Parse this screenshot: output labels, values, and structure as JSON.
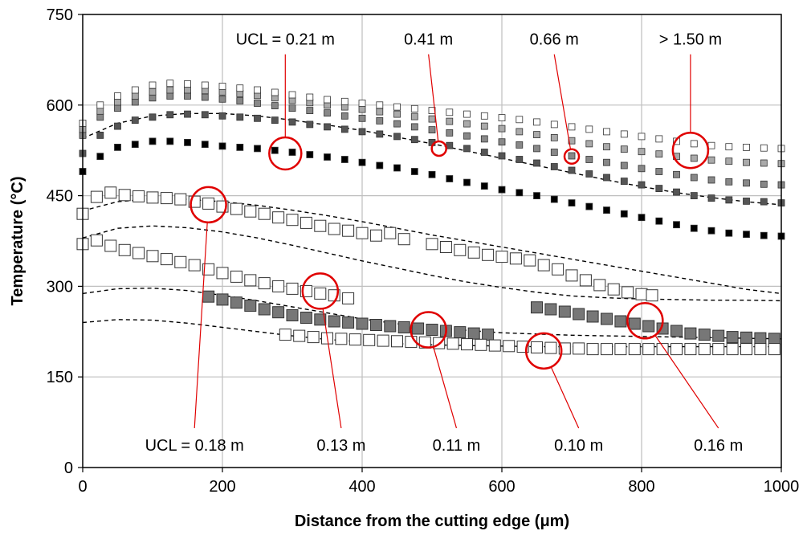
{
  "chart_data": {
    "type": "scatter",
    "title": "",
    "xlabel": "Distance from the cutting edge (μm)",
    "ylabel": "Temperature (°C)",
    "xlim": [
      0,
      1000
    ],
    "ylim": [
      0,
      750
    ],
    "xticks": [
      "0",
      "200",
      "400",
      "600",
      "800",
      "1000"
    ],
    "xtick_values": [
      0,
      200,
      400,
      600,
      800,
      1000
    ],
    "yticks": [
      "0",
      "150",
      "300",
      "450",
      "600",
      "750"
    ],
    "ytick_values": [
      0,
      150,
      300,
      450,
      600,
      750
    ],
    "grid": true,
    "colors": {
      "small_black": "#000000",
      "small_dark_grey": "#555555",
      "small_mid_grey": "#888888",
      "small_light_grey": "#aaaaaa",
      "small_white": "#ffffff",
      "large_white": "#ffffff",
      "large_dark_grey": "#777777",
      "marker_edge": "#333333",
      "annotation": "#e00000",
      "dashed": "#000000",
      "grid": "#bfbfbf"
    },
    "series": [
      {
        "key": "small_black",
        "marker": "small-square",
        "x": [
          0,
          25,
          50,
          75,
          100,
          125,
          150,
          175,
          200,
          225,
          250,
          275,
          300,
          325,
          350,
          375,
          400,
          425,
          450,
          475,
          500,
          525,
          550,
          575,
          600,
          625,
          650,
          675,
          700,
          725,
          750,
          775,
          800,
          825,
          850,
          875,
          900,
          925,
          950,
          975,
          1000
        ],
        "y": [
          490,
          515,
          530,
          535,
          540,
          540,
          538,
          535,
          532,
          530,
          528,
          525,
          522,
          518,
          514,
          510,
          505,
          500,
          496,
          490,
          485,
          478,
          472,
          466,
          460,
          455,
          450,
          444,
          438,
          432,
          426,
          420,
          414,
          408,
          402,
          396,
          392,
          388,
          386,
          384,
          383
        ]
      },
      {
        "key": "small_dark_grey",
        "marker": "small-square",
        "x": [
          0,
          25,
          50,
          75,
          100,
          125,
          150,
          175,
          200,
          225,
          250,
          275,
          300,
          325,
          350,
          375,
          400,
          425,
          450,
          475,
          500,
          525,
          550,
          575,
          600,
          625,
          650,
          675,
          700,
          725,
          750,
          775,
          800,
          825,
          850,
          875,
          900,
          925,
          950,
          975,
          1000
        ],
        "y": [
          520,
          550,
          565,
          575,
          580,
          584,
          585,
          584,
          582,
          580,
          578,
          575,
          572,
          568,
          564,
          560,
          556,
          552,
          548,
          543,
          538,
          533,
          528,
          522,
          516,
          510,
          504,
          498,
          492,
          486,
          480,
          474,
          468,
          462,
          456,
          450,
          446,
          443,
          441,
          440,
          438
        ]
      },
      {
        "key": "small_mid_grey",
        "marker": "small-square",
        "x": [
          0,
          25,
          50,
          75,
          100,
          125,
          150,
          175,
          200,
          225,
          250,
          275,
          300,
          325,
          350,
          375,
          400,
          425,
          450,
          475,
          500,
          525,
          550,
          575,
          600,
          625,
          650,
          675,
          700,
          725,
          750,
          775,
          800,
          825,
          850,
          875,
          900,
          925,
          950,
          975,
          1000
        ],
        "y": [
          550,
          580,
          595,
          605,
          612,
          615,
          615,
          613,
          610,
          607,
          603,
          599,
          595,
          591,
          587,
          582,
          578,
          574,
          569,
          564,
          559,
          554,
          549,
          544,
          539,
          534,
          528,
          522,
          516,
          510,
          505,
          500,
          495,
          490,
          485,
          480,
          476,
          473,
          471,
          469,
          468
        ]
      },
      {
        "key": "small_light_grey",
        "marker": "small-square",
        "x": [
          0,
          25,
          50,
          75,
          100,
          125,
          150,
          175,
          200,
          225,
          250,
          275,
          300,
          325,
          350,
          375,
          400,
          425,
          450,
          475,
          500,
          525,
          550,
          575,
          600,
          625,
          650,
          675,
          700,
          725,
          750,
          775,
          800,
          825,
          850,
          875,
          900,
          925,
          950,
          975,
          1000
        ],
        "y": [
          560,
          590,
          605,
          615,
          622,
          625,
          625,
          624,
          622,
          619,
          616,
          612,
          608,
          604,
          600,
          597,
          593,
          589,
          585,
          581,
          577,
          573,
          569,
          565,
          561,
          556,
          551,
          546,
          541,
          536,
          531,
          527,
          523,
          519,
          515,
          512,
          509,
          507,
          505,
          504,
          503
        ]
      },
      {
        "key": "small_white",
        "marker": "small-square",
        "x": [
          0,
          25,
          50,
          75,
          100,
          125,
          150,
          175,
          200,
          225,
          250,
          275,
          300,
          325,
          350,
          375,
          400,
          425,
          450,
          475,
          500,
          525,
          550,
          575,
          600,
          625,
          650,
          675,
          700,
          725,
          750,
          775,
          800,
          825,
          850,
          875,
          900,
          925,
          950,
          975,
          1000
        ],
        "y": [
          570,
          600,
          615,
          625,
          633,
          636,
          635,
          633,
          631,
          628,
          625,
          621,
          617,
          613,
          609,
          606,
          603,
          600,
          597,
          594,
          591,
          588,
          585,
          582,
          579,
          576,
          572,
          568,
          564,
          560,
          556,
          552,
          548,
          544,
          540,
          536,
          533,
          531,
          530,
          529,
          528
        ]
      },
      {
        "key": "large_white_a",
        "marker": "large-square",
        "fill": "large_white",
        "x": [
          0,
          20,
          40,
          60,
          80,
          100,
          120,
          140,
          160,
          180,
          200,
          220,
          240,
          260,
          280,
          300,
          320,
          340,
          360,
          380,
          400,
          420,
          440,
          460
        ],
        "y": [
          420,
          448,
          455,
          451,
          449,
          447,
          446,
          444,
          440,
          437,
          432,
          428,
          424,
          420,
          414,
          410,
          405,
          400,
          395,
          392,
          388,
          384,
          388,
          378
        ]
      },
      {
        "key": "large_white_b",
        "marker": "large-square",
        "fill": "large_white",
        "x": [
          500,
          520,
          540,
          560,
          580,
          600,
          620,
          640,
          660,
          680,
          700,
          720,
          740,
          760,
          780,
          800,
          815
        ],
        "y": [
          370,
          365,
          360,
          356,
          352,
          349,
          346,
          343,
          335,
          328,
          318,
          310,
          302,
          295,
          290,
          287,
          285
        ]
      },
      {
        "key": "large_white_c",
        "marker": "large-square",
        "fill": "large_white",
        "x": [
          0,
          20,
          40,
          60,
          80,
          100,
          120,
          140,
          160,
          180,
          200,
          220,
          240,
          260,
          280,
          300,
          320,
          340,
          360,
          380
        ],
        "y": [
          370,
          376,
          367,
          360,
          355,
          350,
          345,
          340,
          335,
          328,
          322,
          316,
          310,
          305,
          300,
          296,
          292,
          288,
          285,
          280
        ]
      },
      {
        "key": "large_dark_a",
        "marker": "large-square",
        "fill": "large_dark_grey",
        "x": [
          180,
          200,
          220,
          240,
          260,
          280,
          300,
          320,
          340,
          360,
          380,
          400,
          420,
          440,
          460,
          480,
          500,
          520,
          540,
          560,
          580
        ],
        "y": [
          283,
          278,
          273,
          268,
          262,
          257,
          252,
          248,
          245,
          242,
          240,
          238,
          236,
          234,
          232,
          230,
          228,
          226,
          224,
          222,
          220
        ]
      },
      {
        "key": "large_dark_b",
        "marker": "large-square",
        "fill": "large_dark_grey",
        "x": [
          650,
          670,
          690,
          710,
          730,
          750,
          770,
          790,
          810,
          830,
          850,
          870,
          890,
          910,
          930,
          950,
          970,
          990
        ],
        "y": [
          265,
          262,
          258,
          254,
          250,
          246,
          242,
          238,
          234,
          230,
          226,
          222,
          220,
          218,
          216,
          215,
          214,
          213
        ]
      },
      {
        "key": "large_white_d",
        "marker": "large-square",
        "fill": "large_white",
        "x": [
          290,
          310,
          330,
          350,
          370,
          390,
          410,
          430,
          450,
          470,
          490,
          510,
          530,
          550,
          570,
          590,
          610,
          630,
          650,
          670,
          690,
          710,
          730,
          750,
          770,
          790,
          810,
          830,
          850,
          870,
          890,
          910,
          930,
          950,
          970,
          990
        ],
        "y": [
          220,
          218,
          216,
          214,
          213,
          212,
          211,
          210,
          209,
          208,
          207,
          206,
          205,
          204,
          203,
          202,
          201,
          200,
          199,
          198,
          197,
          197,
          196,
          196,
          196,
          196,
          196,
          196,
          196,
          196,
          196,
          196,
          196,
          196,
          196,
          196
        ]
      }
    ],
    "dashed_curves": [
      {
        "x": [
          0,
          50,
          100,
          150,
          200,
          250,
          300,
          350,
          400,
          450,
          500,
          550,
          600,
          650,
          700,
          750,
          800,
          850,
          900,
          950,
          1000
        ],
        "y": [
          545,
          570,
          582,
          586,
          586,
          582,
          575,
          567,
          558,
          547,
          536,
          524,
          512,
          500,
          488,
          476,
          465,
          455,
          447,
          440,
          435
        ]
      },
      {
        "x": [
          0,
          50,
          100,
          150,
          200,
          250,
          300,
          350,
          400,
          450,
          500,
          550,
          600,
          650,
          700,
          750,
          800,
          850,
          900,
          950,
          1000
        ],
        "y": [
          425,
          440,
          445,
          444,
          440,
          434,
          426,
          417,
          407,
          396,
          385,
          375,
          365,
          355,
          345,
          335,
          325,
          315,
          305,
          295,
          288
        ]
      },
      {
        "x": [
          0,
          50,
          100,
          150,
          200,
          250,
          300,
          350,
          400,
          450,
          500,
          550,
          600,
          650,
          700,
          750,
          800,
          850,
          900,
          950,
          1000
        ],
        "y": [
          380,
          396,
          400,
          397,
          390,
          380,
          368,
          355,
          342,
          330,
          318,
          307,
          298,
          290,
          284,
          281,
          279,
          278,
          277,
          277,
          276
        ]
      },
      {
        "x": [
          0,
          50,
          100,
          150,
          200,
          250,
          300,
          350,
          400,
          450,
          500,
          550,
          600,
          650,
          700,
          750,
          800,
          850,
          900,
          950,
          1000
        ],
        "y": [
          288,
          296,
          297,
          293,
          285,
          276,
          266,
          256,
          246,
          238,
          232,
          227,
          223,
          221,
          219,
          218,
          217,
          216,
          215,
          214,
          213
        ]
      },
      {
        "x": [
          0,
          50,
          100,
          150,
          200,
          250,
          300,
          350,
          400,
          450,
          500,
          550,
          600,
          650,
          700,
          750,
          800,
          850,
          900,
          950,
          1000
        ],
        "y": [
          240,
          245,
          244,
          239,
          232,
          225,
          218,
          212,
          208,
          205,
          203,
          202,
          201,
          200,
          200,
          200,
          200,
          200,
          200,
          200,
          200
        ]
      }
    ],
    "annotations": [
      {
        "label": "UCL = 0.21 m",
        "label_x": 290,
        "label_y": 700,
        "target_x": 290,
        "target_y": 520,
        "radius": 20
      },
      {
        "label": "0.41 m",
        "label_x": 495,
        "label_y": 700,
        "target_x": 510,
        "target_y": 528,
        "radius": 9
      },
      {
        "label": "0.66 m",
        "label_x": 675,
        "label_y": 700,
        "target_x": 700,
        "target_y": 515,
        "radius": 9
      },
      {
        "label": "> 1.50 m",
        "label_x": 870,
        "label_y": 700,
        "target_x": 870,
        "target_y": 525,
        "radius": 22
      },
      {
        "label": "UCL = 0.18 m",
        "label_x": 160,
        "label_y": 28,
        "target_x": 180,
        "target_y": 435,
        "radius": 22
      },
      {
        "label": "0.13 m",
        "label_x": 370,
        "label_y": 28,
        "target_x": 340,
        "target_y": 292,
        "radius": 22
      },
      {
        "label": "0.11 m",
        "label_x": 535,
        "label_y": 28,
        "target_x": 495,
        "target_y": 228,
        "radius": 22
      },
      {
        "label": "0.10 m",
        "label_x": 710,
        "label_y": 28,
        "target_x": 660,
        "target_y": 193,
        "radius": 22
      },
      {
        "label": "0.16 m",
        "label_x": 910,
        "label_y": 28,
        "target_x": 805,
        "target_y": 243,
        "radius": 22
      }
    ]
  }
}
